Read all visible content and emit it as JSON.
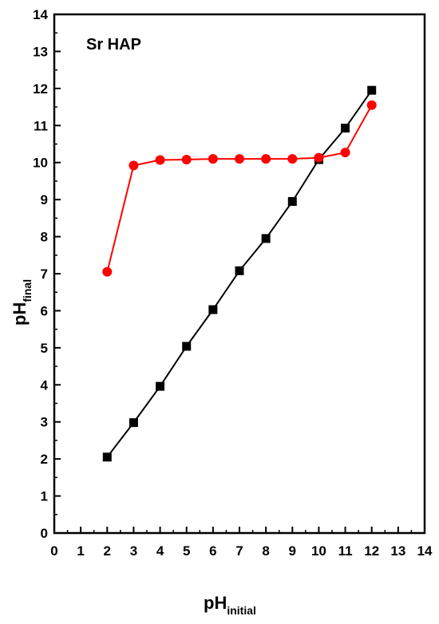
{
  "chart_data": {
    "type": "line",
    "title": "",
    "annotation": "Sr HAP",
    "xlabel": {
      "main": "pH",
      "sub": "initial"
    },
    "ylabel": {
      "main": "pH",
      "sub": "final"
    },
    "xlim": [
      0,
      14
    ],
    "ylim": [
      0,
      14
    ],
    "xticks": [
      "0",
      "1",
      "2",
      "3",
      "4",
      "5",
      "6",
      "7",
      "8",
      "9",
      "10",
      "11",
      "12",
      "13",
      "14"
    ],
    "yticks": [
      "0",
      "1",
      "2",
      "3",
      "4",
      "5",
      "6",
      "7",
      "8",
      "9",
      "10",
      "11",
      "12",
      "13",
      "14"
    ],
    "grid": false,
    "legend": "none",
    "series": [
      {
        "marker": "square",
        "color": "#000000",
        "points": [
          [
            2,
            2.05
          ],
          [
            3,
            2.98
          ],
          [
            4,
            3.96
          ],
          [
            5,
            5.04
          ],
          [
            6,
            6.03
          ],
          [
            7,
            7.08
          ],
          [
            8,
            7.95
          ],
          [
            9,
            8.95
          ],
          [
            10,
            10.08
          ],
          [
            11,
            10.93
          ],
          [
            12,
            11.95
          ]
        ]
      },
      {
        "marker": "circle",
        "color": "#ff0000",
        "points": [
          [
            2,
            7.05
          ],
          [
            3,
            9.92
          ],
          [
            4,
            10.07
          ],
          [
            5,
            10.08
          ],
          [
            6,
            10.1
          ],
          [
            7,
            10.1
          ],
          [
            8,
            10.1
          ],
          [
            9,
            10.1
          ],
          [
            10,
            10.13
          ],
          [
            11,
            10.27
          ],
          [
            12,
            11.55
          ]
        ]
      }
    ]
  }
}
